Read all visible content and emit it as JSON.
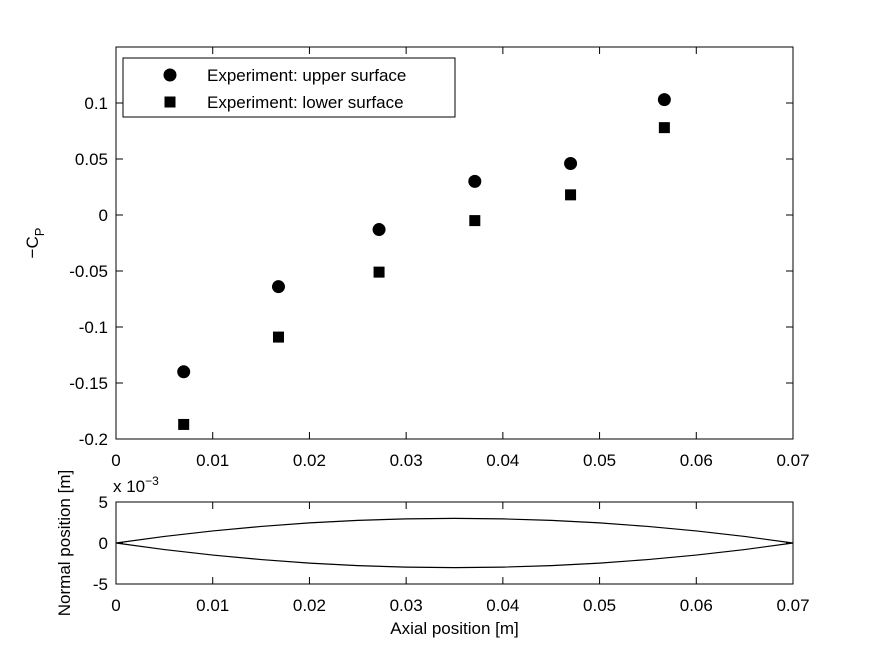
{
  "chart_data": [
    {
      "type": "scatter",
      "ylabel": {
        "main": "−C",
        "sub": "P"
      },
      "x": [
        0.007,
        0.0168,
        0.0272,
        0.0371,
        0.047,
        0.0567
      ],
      "series": [
        {
          "name": "Experiment: upper surface",
          "marker": "circle",
          "color": "#000000",
          "values": [
            -0.14,
            -0.064,
            -0.013,
            0.03,
            0.046,
            0.103
          ]
        },
        {
          "name": "Experiment: lower surface",
          "marker": "square",
          "color": "#000000",
          "values": [
            -0.187,
            -0.109,
            -0.051,
            -0.005,
            0.018,
            0.078
          ]
        }
      ],
      "xlim": [
        0,
        0.07
      ],
      "xticks": [
        0,
        0.01,
        0.02,
        0.03,
        0.04,
        0.05,
        0.06,
        0.07
      ],
      "ylim": [
        -0.2,
        0.15
      ],
      "yticks": [
        -0.2,
        -0.15,
        -0.1,
        -0.05,
        0,
        0.05,
        0.1
      ],
      "legend": "upper-left",
      "grid": false
    },
    {
      "type": "line",
      "xlabel": "Axial position [m]",
      "ylabel": "Normal position [m]",
      "y_multiplier": {
        "base": "x 10",
        "exponent": "−3"
      },
      "x": [
        0,
        0.005,
        0.01,
        0.015,
        0.02,
        0.025,
        0.03,
        0.035,
        0.04,
        0.045,
        0.05,
        0.055,
        0.06,
        0.065,
        0.07
      ],
      "series": [
        {
          "color": "#000000",
          "values": [
            0,
            0.8,
            1.47,
            2.02,
            2.45,
            2.76,
            2.94,
            3,
            2.94,
            2.76,
            2.45,
            2.02,
            1.47,
            0.8,
            0
          ]
        },
        {
          "color": "#000000",
          "values": [
            0,
            -0.8,
            -1.47,
            -2.02,
            -2.45,
            -2.76,
            -2.94,
            -3,
            -2.94,
            -2.76,
            -2.45,
            -2.02,
            -1.47,
            -0.8,
            0
          ]
        }
      ],
      "xlim": [
        0,
        0.07
      ],
      "xticks": [
        0,
        0.01,
        0.02,
        0.03,
        0.04,
        0.05,
        0.06,
        0.07
      ],
      "ylim": [
        -5,
        5
      ],
      "yticks": [
        -5,
        0,
        5
      ],
      "grid": false
    }
  ]
}
